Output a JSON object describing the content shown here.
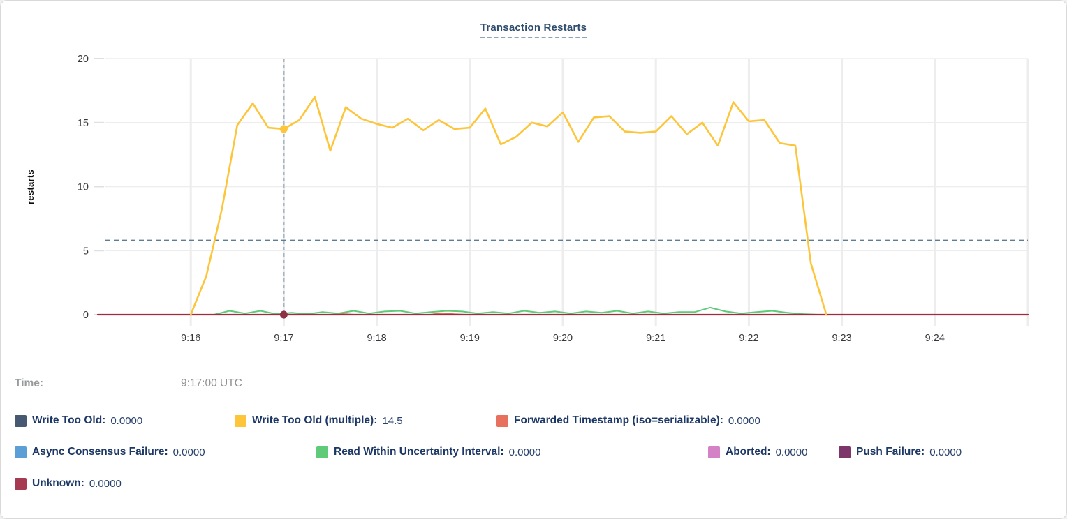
{
  "title": "Transaction Restarts",
  "y_axis": {
    "label": "restarts",
    "tick_labels": [
      "0",
      "5",
      "10",
      "15",
      "20"
    ]
  },
  "x_axis": {
    "tick_labels": [
      "9:16",
      "9:17",
      "9:18",
      "9:19",
      "9:20",
      "9:21",
      "9:22",
      "9:23",
      "9:24"
    ]
  },
  "tooltip": {
    "time_label": "Time:",
    "time_value": "9:17:00 UTC"
  },
  "legend": {
    "items": [
      {
        "label": "Write Too Old:",
        "value": "0.0000",
        "color": "#475872"
      },
      {
        "label": "Write Too Old (multiple):",
        "value": "14.5",
        "color": "#FDC53A"
      },
      {
        "label": "Forwarded Timestamp (iso=serializable):",
        "value": "0.0000",
        "color": "#E8705F"
      },
      {
        "label": "Async Consensus Failure:",
        "value": "0.0000",
        "color": "#5B9FD6"
      },
      {
        "label": "Read Within Uncertainty Interval:",
        "value": "0.0000",
        "color": "#5FCB79"
      },
      {
        "label": "Aborted:",
        "value": "0.0000",
        "color": "#D481C6"
      },
      {
        "label": "Push Failure:",
        "value": "0.0000",
        "color": "#7D3669"
      },
      {
        "label": "Unknown:",
        "value": "0.0000",
        "color": "#A63A50"
      }
    ]
  },
  "chart_data": {
    "type": "line",
    "title": "Transaction Restarts",
    "xlabel": "",
    "ylabel": "restarts",
    "ylim": [
      0,
      20
    ],
    "y_ticks": [
      0,
      5,
      10,
      15,
      20
    ],
    "t_unit": "seconds since 9:15:00 UTC",
    "x_domain_seconds": [
      0,
      600
    ],
    "x_gridlines_seconds": [
      60,
      120,
      180,
      240,
      300,
      360,
      420,
      480,
      540,
      600
    ],
    "grid": true,
    "legend_position": "bottom",
    "reference_line": {
      "value": 5.8,
      "style": "dashed",
      "color": "#5A7E99"
    },
    "crosshair": {
      "t": 120,
      "time": "9:17:00 UTC",
      "color": "#3E6380",
      "points": [
        {
          "series": "Write Too Old (multiple)",
          "value": 14.5,
          "dot_color": "#FDC53A"
        },
        {
          "series": "Unknown",
          "value": 0,
          "dot_color": "#8E3145"
        }
      ]
    },
    "series": [
      {
        "name": "Write Too Old",
        "color": "#475872",
        "stroke_width": 1.4,
        "points": [
          [
            0,
            0
          ],
          [
            600,
            0
          ]
        ]
      },
      {
        "name": "Async Consensus Failure",
        "color": "#5B9FD6",
        "stroke_width": 1.4,
        "points": [
          [
            0,
            0
          ],
          [
            600,
            0
          ]
        ]
      },
      {
        "name": "Aborted",
        "color": "#D481C6",
        "stroke_width": 1.4,
        "points": [
          [
            0,
            0
          ],
          [
            600,
            0
          ]
        ]
      },
      {
        "name": "Push Failure",
        "color": "#7D3669",
        "stroke_width": 1.4,
        "points": [
          [
            0,
            0
          ],
          [
            600,
            0
          ]
        ]
      },
      {
        "name": "Forwarded Timestamp (iso=serializable)",
        "color": "#E8705F",
        "stroke_width": 1.8,
        "points": [
          [
            0,
            0
          ],
          [
            150,
            0
          ],
          [
            158,
            0.06
          ],
          [
            166,
            0
          ],
          [
            214,
            0
          ],
          [
            222,
            0.12
          ],
          [
            230,
            0.05
          ],
          [
            238,
            0
          ],
          [
            600,
            0
          ]
        ]
      },
      {
        "name": "Read Within Uncertainty Interval",
        "color": "#5FCB79",
        "stroke_width": 2,
        "points": [
          [
            75,
            0
          ],
          [
            85,
            0.3
          ],
          [
            95,
            0.1
          ],
          [
            105,
            0.3
          ],
          [
            115,
            0.05
          ],
          [
            125,
            0.15
          ],
          [
            135,
            0.05
          ],
          [
            145,
            0.2
          ],
          [
            155,
            0.1
          ],
          [
            165,
            0.3
          ],
          [
            175,
            0.1
          ],
          [
            185,
            0.25
          ],
          [
            195,
            0.3
          ],
          [
            205,
            0.1
          ],
          [
            215,
            0.2
          ],
          [
            225,
            0.3
          ],
          [
            235,
            0.25
          ],
          [
            245,
            0.1
          ],
          [
            255,
            0.2
          ],
          [
            265,
            0.1
          ],
          [
            275,
            0.3
          ],
          [
            285,
            0.15
          ],
          [
            295,
            0.25
          ],
          [
            305,
            0.1
          ],
          [
            315,
            0.25
          ],
          [
            325,
            0.15
          ],
          [
            335,
            0.3
          ],
          [
            345,
            0.1
          ],
          [
            355,
            0.25
          ],
          [
            365,
            0.1
          ],
          [
            375,
            0.2
          ],
          [
            385,
            0.2
          ],
          [
            395,
            0.55
          ],
          [
            405,
            0.25
          ],
          [
            415,
            0.1
          ],
          [
            425,
            0.2
          ],
          [
            435,
            0.3
          ],
          [
            445,
            0.15
          ],
          [
            455,
            0.05
          ],
          [
            465,
            0
          ]
        ]
      },
      {
        "name": "Unknown",
        "color": "#A12C3E",
        "stroke_width": 2.3,
        "points": [
          [
            0,
            0
          ],
          [
            600,
            0
          ]
        ]
      },
      {
        "name": "Write Too Old (multiple)",
        "color": "#FDC53A",
        "stroke_width": 2.6,
        "points": [
          [
            60,
            0
          ],
          [
            70,
            3
          ],
          [
            80,
            8.2
          ],
          [
            90,
            14.8
          ],
          [
            100,
            16.5
          ],
          [
            110,
            14.6
          ],
          [
            120,
            14.5
          ],
          [
            130,
            15.2
          ],
          [
            140,
            17.0
          ],
          [
            150,
            12.8
          ],
          [
            160,
            16.2
          ],
          [
            170,
            15.3
          ],
          [
            180,
            14.9
          ],
          [
            190,
            14.6
          ],
          [
            200,
            15.3
          ],
          [
            210,
            14.4
          ],
          [
            220,
            15.2
          ],
          [
            230,
            14.5
          ],
          [
            240,
            14.6
          ],
          [
            250,
            16.1
          ],
          [
            260,
            13.3
          ],
          [
            270,
            13.9
          ],
          [
            280,
            15.0
          ],
          [
            290,
            14.7
          ],
          [
            300,
            15.8
          ],
          [
            310,
            13.5
          ],
          [
            320,
            15.4
          ],
          [
            330,
            15.5
          ],
          [
            340,
            14.3
          ],
          [
            350,
            14.2
          ],
          [
            360,
            14.3
          ],
          [
            370,
            15.5
          ],
          [
            380,
            14.1
          ],
          [
            390,
            15.0
          ],
          [
            400,
            13.2
          ],
          [
            410,
            16.6
          ],
          [
            420,
            15.1
          ],
          [
            430,
            15.2
          ],
          [
            440,
            13.4
          ],
          [
            450,
            13.2
          ],
          [
            460,
            4.0
          ],
          [
            470,
            0
          ]
        ]
      }
    ]
  }
}
